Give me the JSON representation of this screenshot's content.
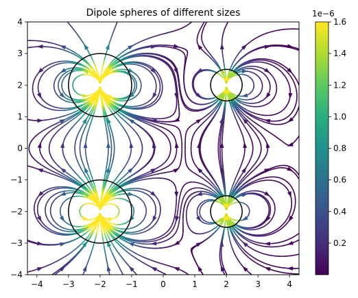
{
  "chart_data": {
    "type": "streamplot",
    "title": "Dipole spheres of different sizes",
    "xlabel": "",
    "ylabel": "",
    "xlim": [
      -4.3,
      4.3
    ],
    "ylim": [
      -4,
      4
    ],
    "x_ticks": [
      -4,
      -3,
      -2,
      -1,
      0,
      1,
      2,
      3,
      4
    ],
    "y_ticks": [
      -4,
      -3,
      -2,
      -1,
      0,
      1,
      2,
      3,
      4
    ],
    "x_tick_labels": [
      "−4",
      "−3",
      "−2",
      "−1",
      "0",
      "1",
      "2",
      "3",
      "4"
    ],
    "y_tick_labels": [
      "−4",
      "−3",
      "−2",
      "−1",
      "0",
      "1",
      "2",
      "3",
      "4"
    ],
    "spheres": [
      {
        "cx": -2,
        "cy": 2,
        "r": 1.0
      },
      {
        "cx": -2,
        "cy": -2,
        "r": 1.0
      },
      {
        "cx": 2,
        "cy": 2,
        "r": 0.5
      },
      {
        "cx": 2,
        "cy": -2,
        "r": 0.5
      }
    ],
    "colorbar": {
      "colormap": "viridis",
      "min": 0.0,
      "max": 1.6,
      "ticks": [
        0.2,
        0.4,
        0.6,
        0.8,
        1.0,
        1.2,
        1.4,
        1.6
      ],
      "tick_labels": [
        "0.2",
        "0.4",
        "0.6",
        "0.8",
        "1.0",
        "1.2",
        "1.4",
        "1.6"
      ],
      "offset_label": "1e−6"
    },
    "grid": false
  }
}
